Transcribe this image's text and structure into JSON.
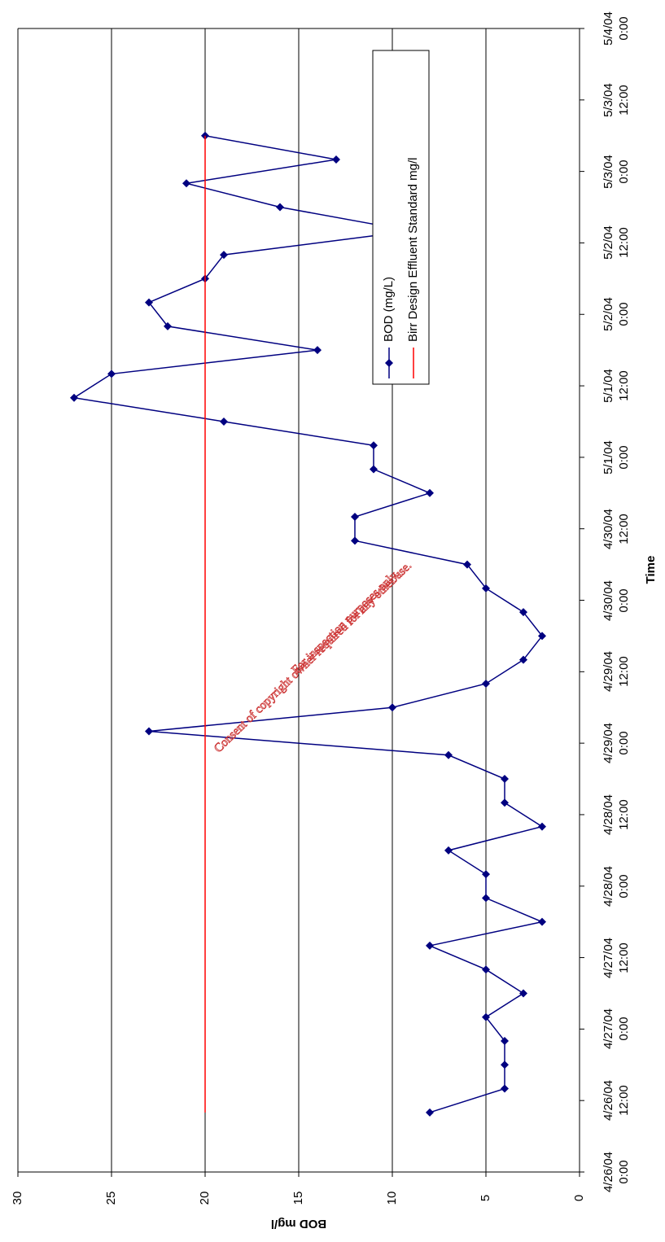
{
  "chart_data": {
    "type": "line",
    "x_label": "Time",
    "y_label": "BOD mg/l",
    "x": [
      "4/26/04 10:00",
      "4/26/04 14:00",
      "4/26/04 18:00",
      "4/26/04 22:00",
      "4/27/04 2:00",
      "4/27/04 6:00",
      "4/27/04 10:00",
      "4/27/04 14:00",
      "4/27/04 18:00",
      "4/27/04 22:00",
      "4/28/04 2:00",
      "4/28/04 6:00",
      "4/28/04 10:00",
      "4/28/04 14:00",
      "4/28/04 18:00",
      "4/28/04 22:00",
      "4/29/04 2:00",
      "4/29/04 6:00",
      "4/29/04 10:00",
      "4/29/04 14:00",
      "4/29/04 18:00",
      "4/29/04 22:00",
      "4/30/04 2:00",
      "4/30/04 6:00",
      "4/30/04 10:00",
      "4/30/04 14:00",
      "4/30/04 18:00",
      "4/30/04 22:00",
      "5/1/04 2:00",
      "5/1/04 6:00",
      "5/1/04 10:00",
      "5/1/04 14:00",
      "5/1/04 18:00",
      "5/1/04 22:00",
      "5/2/04 2:00",
      "5/2/04 6:00",
      "5/2/04 10:00",
      "5/2/04 14:00",
      "5/2/04 18:00",
      "5/2/04 22:00",
      "5/3/04 2:00",
      "5/3/04 6:00"
    ],
    "series": [
      {
        "name": "BOD (mg/L)",
        "color": "#000080",
        "marker": "diamond",
        "values": [
          8,
          4,
          4,
          4,
          5,
          3,
          5,
          8,
          2,
          5,
          5,
          7,
          2,
          4,
          4,
          7,
          23,
          10,
          5,
          3,
          2,
          3,
          5,
          6,
          12,
          12,
          8,
          11,
          11,
          19,
          27,
          25,
          14,
          22,
          23,
          20,
          19,
          9,
          16,
          21,
          13,
          20
        ]
      },
      {
        "name": "Birr Design Effluent Standard mg/l",
        "color": "#ff0000",
        "marker": "none",
        "values": [
          20,
          20,
          20,
          20,
          20,
          20,
          20,
          20,
          20,
          20,
          20,
          20,
          20,
          20,
          20,
          20,
          20,
          20,
          20,
          20,
          20,
          20,
          20,
          20,
          20,
          20,
          20,
          20,
          20,
          20,
          20,
          20,
          20,
          20,
          20,
          20,
          20,
          20,
          20,
          20,
          20,
          20
        ]
      }
    ],
    "xlim": [
      "4/26/04 0:00",
      "5/4/04 0:00"
    ],
    "xticks": [
      "4/26/04 0:00",
      "4/26/04 12:00",
      "4/27/04 0:00",
      "4/27/04 12:00",
      "4/28/04 0:00",
      "4/28/04 12:00",
      "4/29/04 0:00",
      "4/29/04 12:00",
      "4/30/04 0:00",
      "4/30/04 12:00",
      "5/1/04 0:00",
      "5/1/04 12:00",
      "5/2/04 0:00",
      "5/2/04 12:00",
      "5/3/04 0:00",
      "5/3/04 12:00",
      "5/4/04 0:00"
    ],
    "ylim": [
      0,
      30
    ],
    "yticks": [
      0,
      5,
      10,
      15,
      20,
      25,
      30
    ],
    "grid": true,
    "annotations": [
      "For inspection purposes only.",
      "Consent of copyright owner required for any other use."
    ]
  }
}
